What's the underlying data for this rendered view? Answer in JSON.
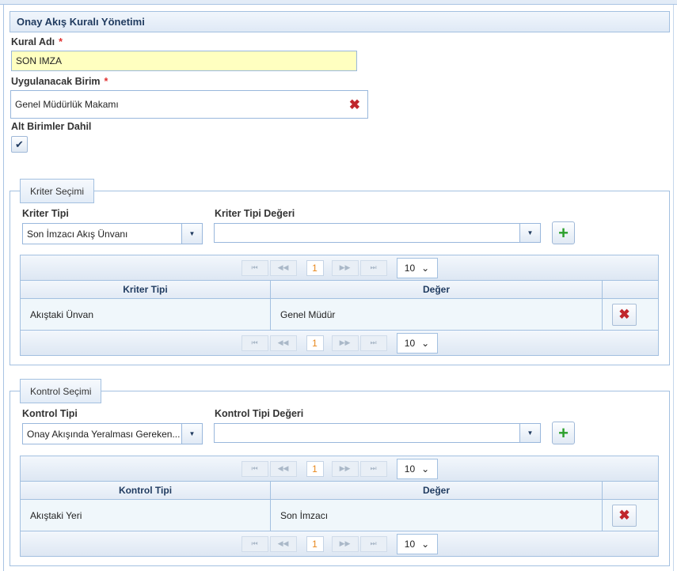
{
  "panel": {
    "title": "Onay Akış Kuralı Yönetimi"
  },
  "form": {
    "kural_adi": {
      "label": "Kural Adı",
      "required": "*",
      "value": "SON IMZA"
    },
    "uygulanacak_birim": {
      "label": "Uygulanacak Birim",
      "required": "*",
      "value": "Genel Müdürlük Makamı",
      "clear_icon": "red-x-icon"
    },
    "alt_birimler": {
      "label": "Alt Birimler Dahil",
      "checked": true,
      "check": "✔"
    }
  },
  "kriter": {
    "legend": "Kriter Seçimi",
    "type_label": "Kriter Tipi",
    "type_value": "Son İmzacı Akış Ünvanı",
    "value_label": "Kriter Tipi Değeri",
    "value_value": "",
    "add_icon": "+",
    "pager": {
      "first": "⏮",
      "prev": "◀◀",
      "page": "1",
      "next": "▶▶",
      "last": "⏭",
      "size": "10"
    },
    "columns": [
      "Kriter Tipi",
      "Değer",
      ""
    ],
    "rows": [
      {
        "type": "Akıştaki Ünvan",
        "value": "Genel Müdür"
      }
    ]
  },
  "kontrol": {
    "legend": "Kontrol Seçimi",
    "type_label": "Kontrol Tipi",
    "type_value": "Onay Akışında Yeralması Gereken...",
    "value_label": "Kontrol Tipi Değeri",
    "value_value": "",
    "add_icon": "+",
    "pager": {
      "first": "⏮",
      "prev": "◀◀",
      "page": "1",
      "next": "▶▶",
      "last": "⏭",
      "size": "10"
    },
    "columns": [
      "Kontrol Tipi",
      "Değer",
      ""
    ],
    "rows": [
      {
        "type": "Akıştaki Yeri",
        "value": "Son İmzacı"
      }
    ]
  },
  "colors": {
    "accent_border": "#a3c0e0",
    "required": "#e03030",
    "highlight_input": "#ffffc0",
    "delete": "#c0262c",
    "add": "#2ca02c",
    "page_number": "#e8861b"
  }
}
